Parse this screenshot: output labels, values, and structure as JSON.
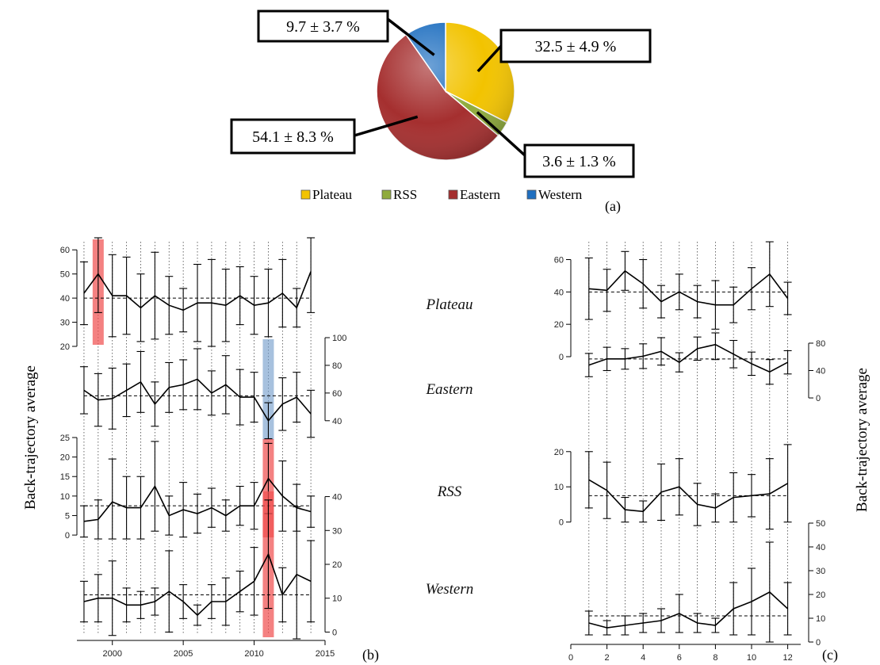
{
  "chart_data": [
    {
      "type": "pie",
      "panel_label": "(a)",
      "slices": [
        {
          "name": "Plateau",
          "value": 32.5,
          "label": "32.5 ± 4.9 %",
          "color": "#f2c300"
        },
        {
          "name": "RSS",
          "value": 3.6,
          "label": "3.6 ± 1.3 %",
          "color": "#8fab3c"
        },
        {
          "name": "Eastern",
          "value": 54.1,
          "label": "54.1 ± 8.3 %",
          "color": "#a52f2f"
        },
        {
          "name": "Western",
          "value": 9.7,
          "label": "9.7 ± 3.7 %",
          "color": "#1f6fc0"
        }
      ],
      "legend": {
        "placement": "bottom",
        "entries": [
          "Plateau",
          "RSS",
          "Eastern",
          "Western"
        ]
      }
    },
    {
      "type": "line",
      "panel_label": "(b)",
      "ylabel": "Back-trajectory average",
      "x": [
        1998,
        1999,
        2000,
        2001,
        2002,
        2003,
        2004,
        2005,
        2006,
        2007,
        2008,
        2009,
        2010,
        2011,
        2012,
        2013,
        2014
      ],
      "xlim": [
        1997.5,
        2015
      ],
      "xticks": [
        2000,
        2005,
        2010,
        2015
      ],
      "series": [
        {
          "name": "Plateau",
          "y_axis_side": "left",
          "ylim": [
            20,
            65
          ],
          "yticks": [
            20,
            30,
            40,
            50,
            60
          ],
          "mean": 40,
          "values": [
            42,
            50,
            41,
            41,
            36,
            41,
            37,
            35,
            38,
            38,
            37,
            41,
            37,
            38,
            42,
            36,
            51
          ],
          "err": [
            13,
            16,
            17,
            16,
            14,
            18,
            12,
            9,
            16,
            18,
            15,
            12,
            12,
            14,
            14,
            8,
            17
          ],
          "highlights": [
            {
              "x": 1999,
              "color": "red"
            }
          ]
        },
        {
          "name": "Eastern",
          "y_axis_side": "right",
          "ylim": [
            25,
            100
          ],
          "yticks": [
            40,
            60,
            80,
            100
          ],
          "mean": 58,
          "values": [
            62,
            55,
            56,
            62,
            68,
            52,
            64,
            66,
            70,
            60,
            66,
            57,
            57,
            40,
            52,
            57,
            45
          ],
          "err": [
            17,
            19,
            22,
            19,
            22,
            16,
            18,
            18,
            22,
            16,
            21,
            20,
            18,
            13,
            19,
            18,
            17
          ],
          "highlights": [
            {
              "x": 2011,
              "color": "blue"
            }
          ]
        },
        {
          "name": "RSS",
          "y_axis_side": "left",
          "ylim": [
            -1,
            25
          ],
          "yticks": [
            0,
            5,
            10,
            15,
            20,
            25
          ],
          "mean": 7.5,
          "values": [
            3.5,
            4,
            8.5,
            7,
            7,
            12.5,
            5,
            6.5,
            5.5,
            7,
            5,
            7.5,
            7.5,
            14.5,
            10,
            7,
            6
          ],
          "err": [
            4,
            5,
            11,
            8,
            8,
            11.5,
            5,
            7,
            5,
            5,
            4,
            5,
            6,
            9,
            9,
            6,
            4
          ],
          "highlights": [
            {
              "x": 2011,
              "color": "red"
            }
          ]
        },
        {
          "name": "Western",
          "y_axis_side": "right",
          "ylim": [
            -2,
            42
          ],
          "yticks": [
            0,
            10,
            20,
            30,
            40
          ],
          "mean": 11,
          "values": [
            9,
            10,
            10,
            8,
            8,
            9,
            12,
            9,
            5,
            9,
            9,
            12,
            15,
            23,
            11,
            17,
            15
          ],
          "err": [
            6,
            7,
            11,
            5,
            4,
            4,
            12,
            5,
            3,
            5,
            7,
            6,
            10,
            16,
            8,
            20,
            12
          ],
          "highlights": [
            {
              "x": 2011,
              "color": "red"
            }
          ]
        }
      ]
    },
    {
      "type": "line",
      "panel_label": "(c)",
      "ylabel": "Back-trajectory average",
      "x": [
        1,
        2,
        3,
        4,
        5,
        6,
        7,
        8,
        9,
        10,
        11,
        12
      ],
      "xlim": [
        0,
        12.5
      ],
      "xticks": [
        0,
        2,
        4,
        6,
        8,
        10,
        12
      ],
      "series": [
        {
          "name": "Plateau",
          "y_axis_side": "left",
          "ylim": [
            0,
            72
          ],
          "yticks": [
            0,
            20,
            40,
            60
          ],
          "mean": 40,
          "values": [
            42,
            41,
            53,
            45,
            34,
            40,
            34,
            32,
            32,
            42,
            51,
            36
          ],
          "err": [
            19,
            13,
            12,
            15,
            10,
            11,
            10,
            15,
            11,
            13,
            20,
            10
          ]
        },
        {
          "name": "Eastern",
          "y_axis_side": "right",
          "ylim": [
            -15,
            95
          ],
          "yticks": [
            0,
            40,
            80
          ],
          "mean": 57,
          "values": [
            48,
            57,
            57,
            61,
            68,
            52,
            72,
            78,
            64,
            50,
            38,
            52
          ],
          "err": [
            17,
            17,
            15,
            18,
            20,
            14,
            17,
            22,
            20,
            17,
            18,
            17
          ]
        },
        {
          "name": "RSS",
          "y_axis_side": "left",
          "ylim": [
            -3,
            24
          ],
          "yticks": [
            0,
            10,
            20
          ],
          "mean": 7.5,
          "values": [
            12,
            9,
            3.5,
            3,
            8.5,
            10,
            5,
            4,
            7,
            7.5,
            8,
            11
          ],
          "err": [
            8,
            8,
            3.5,
            3,
            8,
            8,
            6,
            4,
            7,
            6,
            10,
            11
          ]
        },
        {
          "name": "Western",
          "y_axis_side": "right",
          "ylim": [
            0,
            50
          ],
          "yticks": [
            0,
            10,
            20,
            30,
            40,
            50
          ],
          "mean": 11,
          "values": [
            8,
            6,
            7,
            8,
            9,
            12,
            8,
            7,
            14,
            17,
            21,
            14
          ],
          "err": [
            5,
            3,
            4,
            4,
            5,
            8,
            4,
            3,
            11,
            14,
            21,
            11
          ]
        }
      ]
    }
  ]
}
